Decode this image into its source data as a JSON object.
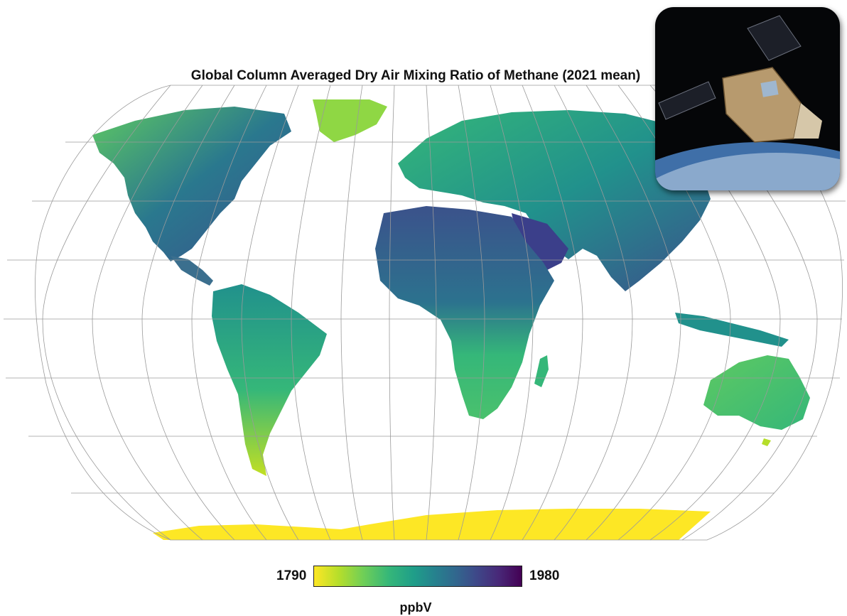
{
  "title": "Global Column Averaged Dry Air Mixing Ratio of Methane (2021 mean)",
  "colorbar": {
    "min_label": "1790",
    "max_label": "1980",
    "unit": "ppbV",
    "colormap": "viridis (reversed: yellow low, purple high)"
  },
  "palette": {
    "low": "#fde725",
    "mid": "#21918c",
    "high": "#440154",
    "graticule": "#9a9a9a"
  },
  "map": {
    "projection": "Robinson",
    "graticule": "on",
    "ocean": "white (no data)"
  },
  "inset": {
    "content": "satellite-in-orbit-image"
  }
}
